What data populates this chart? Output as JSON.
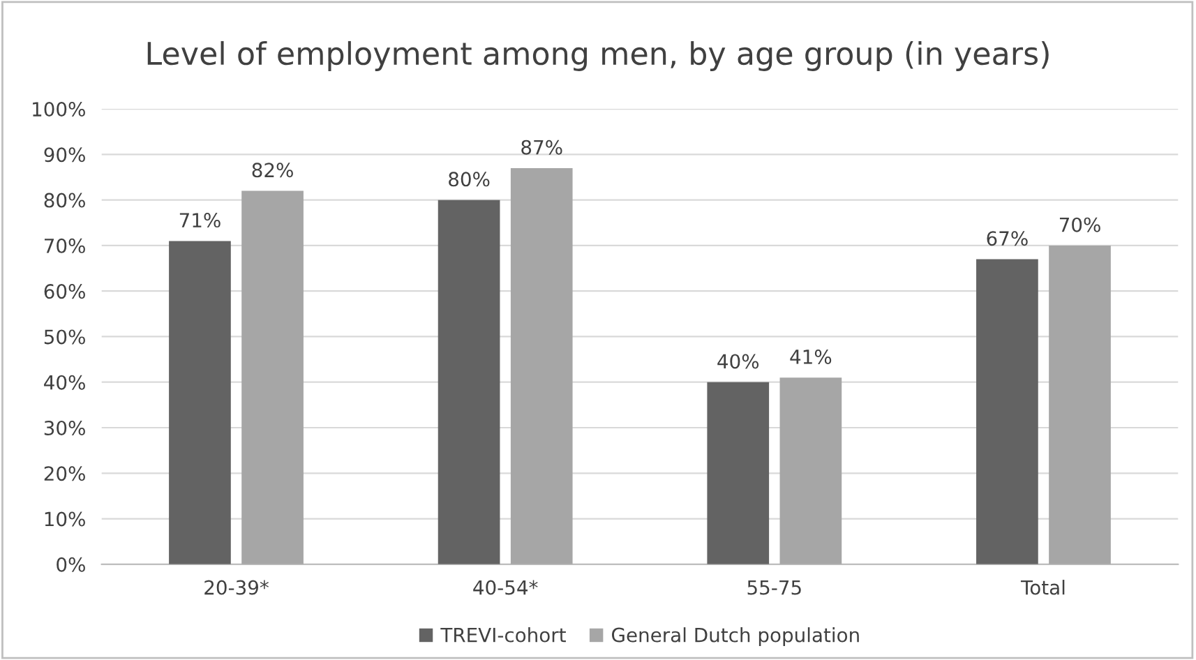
{
  "chart_data": {
    "type": "bar",
    "title": "Level of employment among men, by age group (in years)",
    "categories": [
      "20-39*",
      "40-54*",
      "55-75",
      "Total"
    ],
    "series": [
      {
        "name": "TREVI-cohort",
        "color": "#636363",
        "values": [
          71,
          80,
          40,
          67
        ],
        "value_labels": [
          "71%",
          "80%",
          "40%",
          "67%"
        ]
      },
      {
        "name": "General Dutch population",
        "color": "#a6a6a6",
        "values": [
          82,
          87,
          41,
          70
        ],
        "value_labels": [
          "82%",
          "87%",
          "41%",
          "70%"
        ]
      }
    ],
    "ylim": [
      0,
      100
    ],
    "yticks": [
      {
        "value": 0,
        "label": "0%"
      },
      {
        "value": 10,
        "label": "10%"
      },
      {
        "value": 20,
        "label": "20%"
      },
      {
        "value": 30,
        "label": "30%"
      },
      {
        "value": 40,
        "label": "40%"
      },
      {
        "value": 50,
        "label": "50%"
      },
      {
        "value": 60,
        "label": "60%"
      },
      {
        "value": 70,
        "label": "70%"
      },
      {
        "value": 80,
        "label": "80%"
      },
      {
        "value": 90,
        "label": "90%"
      },
      {
        "value": 100,
        "label": "100%"
      }
    ],
    "grid": "y",
    "legend": "bottom"
  }
}
